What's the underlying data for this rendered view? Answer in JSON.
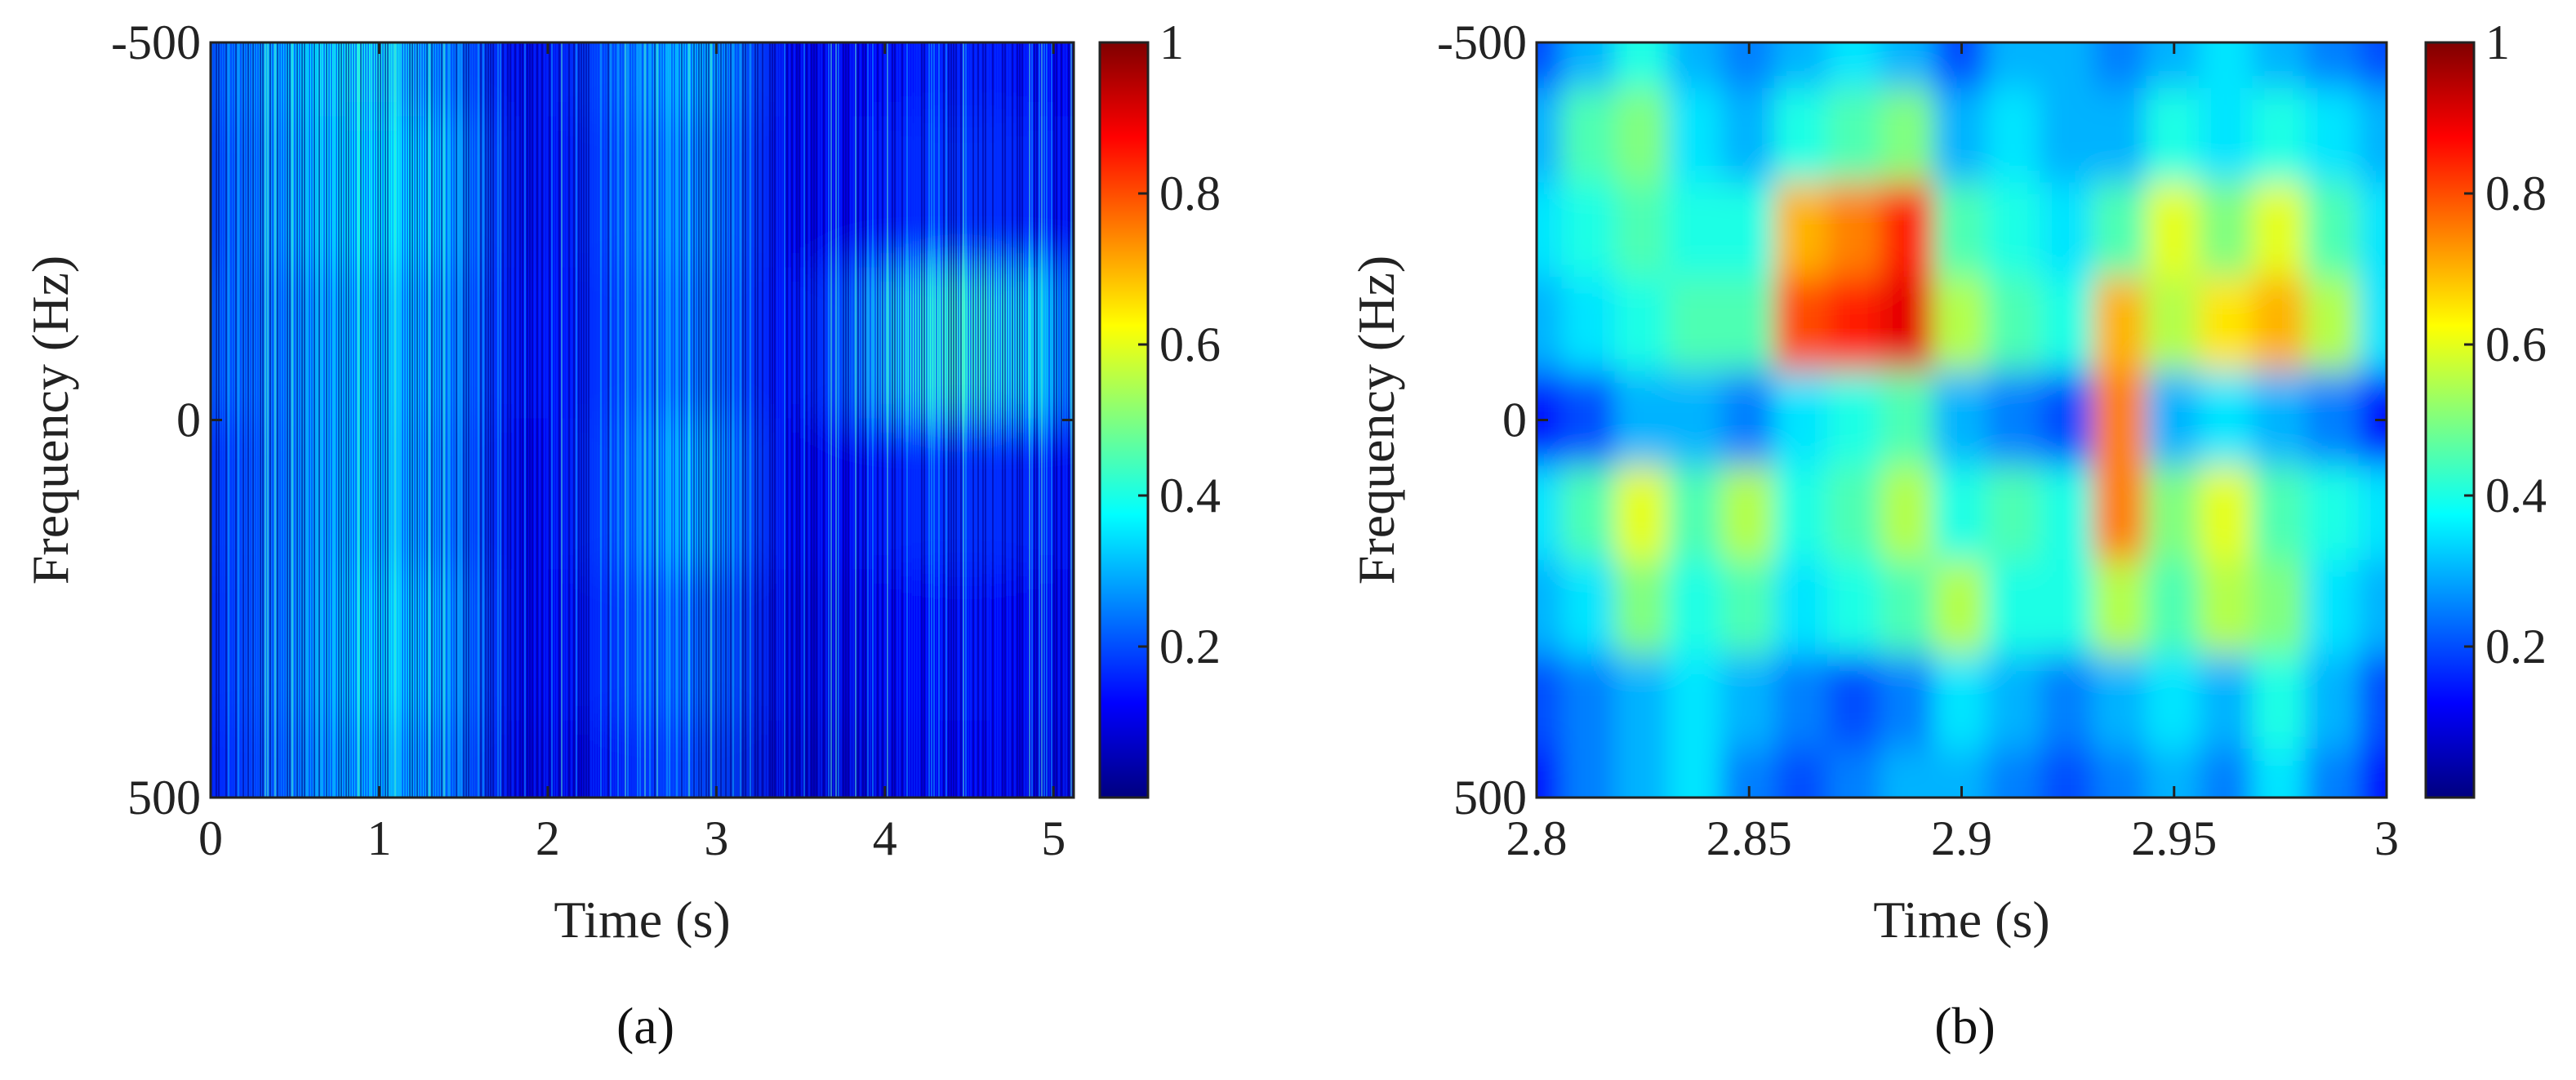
{
  "chart_data": [
    {
      "type": "heatmap",
      "panel_label": "(a)",
      "xlabel": "Time (s)",
      "ylabel": "Frequency (Hz)",
      "xlim": [
        0,
        5.12
      ],
      "ylim": [
        -500,
        500
      ],
      "y_reversed": true,
      "xticks": [
        0,
        1,
        2,
        3,
        4,
        5
      ],
      "xtick_labels": [
        "0",
        "1",
        "2",
        "3",
        "4",
        "5"
      ],
      "yticks": [
        -500,
        0,
        500
      ],
      "ytick_labels": [
        "-500",
        "0",
        "500"
      ],
      "colormap": "jet",
      "clim": [
        0,
        1
      ],
      "colorbar_ticks": [
        0.2,
        0.4,
        0.6,
        0.8,
        1
      ],
      "colorbar_labels": [
        "0.2",
        "0.4",
        "0.6",
        "0.8",
        "1"
      ],
      "grid_t": [
        0,
        0.32,
        0.64,
        0.96,
        1.28,
        1.6,
        1.92,
        2.24,
        2.56,
        2.88,
        3.2,
        3.52,
        3.84,
        4.16,
        4.48,
        4.8,
        5.12
      ],
      "grid_f": [
        -500,
        -300,
        -100,
        100,
        300,
        500
      ],
      "grid_values": [
        [
          0.22,
          0.28,
          0.36,
          0.4,
          0.3,
          0.14,
          0.1,
          0.16,
          0.26,
          0.34,
          0.12,
          0.1,
          0.12,
          0.14,
          0.16,
          0.14,
          0.12
        ],
        [
          0.2,
          0.26,
          0.34,
          0.38,
          0.36,
          0.16,
          0.1,
          0.14,
          0.24,
          0.3,
          0.12,
          0.1,
          0.12,
          0.16,
          0.18,
          0.16,
          0.12
        ],
        [
          0.24,
          0.24,
          0.3,
          0.34,
          0.32,
          0.16,
          0.12,
          0.14,
          0.22,
          0.28,
          0.12,
          0.12,
          0.2,
          0.4,
          0.44,
          0.38,
          0.22
        ],
        [
          0.18,
          0.22,
          0.3,
          0.34,
          0.3,
          0.14,
          0.1,
          0.14,
          0.24,
          0.34,
          0.12,
          0.1,
          0.12,
          0.16,
          0.18,
          0.16,
          0.12
        ],
        [
          0.16,
          0.22,
          0.3,
          0.36,
          0.34,
          0.14,
          0.1,
          0.12,
          0.2,
          0.26,
          0.1,
          0.08,
          0.1,
          0.12,
          0.14,
          0.12,
          0.1
        ],
        [
          0.14,
          0.2,
          0.28,
          0.32,
          0.3,
          0.12,
          0.08,
          0.1,
          0.16,
          0.22,
          0.08,
          0.06,
          0.08,
          0.1,
          0.12,
          0.1,
          0.08
        ]
      ]
    },
    {
      "type": "heatmap",
      "panel_label": "(b)",
      "xlabel": "Time (s)",
      "ylabel": "Frequency (Hz)",
      "xlim": [
        2.8,
        3.0
      ],
      "ylim": [
        -500,
        500
      ],
      "y_reversed": true,
      "xticks": [
        2.8,
        2.85,
        2.9,
        2.95,
        3.0
      ],
      "xtick_labels": [
        "2.8",
        "2.85",
        "2.9",
        "2.95",
        "3"
      ],
      "yticks": [
        -500,
        0,
        500
      ],
      "ytick_labels": [
        "-500",
        "0",
        "500"
      ],
      "colormap": "jet",
      "clim": [
        0,
        1
      ],
      "colorbar_ticks": [
        0.2,
        0.4,
        0.6,
        0.8,
        1
      ],
      "colorbar_labels": [
        "0.2",
        "0.4",
        "0.6",
        "0.8",
        "1"
      ],
      "grid_t": [
        2.8,
        2.8125,
        2.825,
        2.8375,
        2.85,
        2.8625,
        2.875,
        2.8875,
        2.9,
        2.9125,
        2.925,
        2.9375,
        2.95,
        2.9625,
        2.975,
        2.9875,
        3.0
      ],
      "grid_f": [
        -500,
        -375,
        -250,
        -125,
        0,
        125,
        250,
        375,
        500
      ],
      "grid_values": [
        [
          0.2,
          0.3,
          0.4,
          0.3,
          0.25,
          0.3,
          0.35,
          0.3,
          0.2,
          0.3,
          0.3,
          0.25,
          0.3,
          0.35,
          0.3,
          0.25,
          0.2
        ],
        [
          0.3,
          0.45,
          0.5,
          0.35,
          0.3,
          0.4,
          0.45,
          0.5,
          0.3,
          0.35,
          0.3,
          0.3,
          0.4,
          0.35,
          0.4,
          0.35,
          0.3
        ],
        [
          0.35,
          0.4,
          0.45,
          0.4,
          0.4,
          0.7,
          0.75,
          0.85,
          0.45,
          0.4,
          0.35,
          0.45,
          0.6,
          0.5,
          0.6,
          0.45,
          0.35
        ],
        [
          0.3,
          0.35,
          0.4,
          0.45,
          0.45,
          0.8,
          0.85,
          0.9,
          0.55,
          0.45,
          0.4,
          0.7,
          0.55,
          0.65,
          0.7,
          0.55,
          0.35
        ],
        [
          0.15,
          0.2,
          0.3,
          0.3,
          0.25,
          0.35,
          0.4,
          0.45,
          0.3,
          0.25,
          0.2,
          0.75,
          0.3,
          0.35,
          0.3,
          0.25,
          0.15
        ],
        [
          0.35,
          0.45,
          0.6,
          0.45,
          0.55,
          0.4,
          0.45,
          0.55,
          0.4,
          0.45,
          0.4,
          0.75,
          0.5,
          0.6,
          0.45,
          0.4,
          0.35
        ],
        [
          0.3,
          0.35,
          0.5,
          0.4,
          0.45,
          0.35,
          0.4,
          0.45,
          0.55,
          0.4,
          0.4,
          0.55,
          0.45,
          0.55,
          0.5,
          0.35,
          0.3
        ],
        [
          0.2,
          0.25,
          0.3,
          0.35,
          0.3,
          0.25,
          0.2,
          0.25,
          0.35,
          0.3,
          0.25,
          0.3,
          0.35,
          0.3,
          0.4,
          0.3,
          0.2
        ],
        [
          0.15,
          0.25,
          0.3,
          0.35,
          0.25,
          0.2,
          0.25,
          0.3,
          0.3,
          0.25,
          0.2,
          0.25,
          0.3,
          0.25,
          0.35,
          0.25,
          0.15
        ]
      ]
    }
  ]
}
